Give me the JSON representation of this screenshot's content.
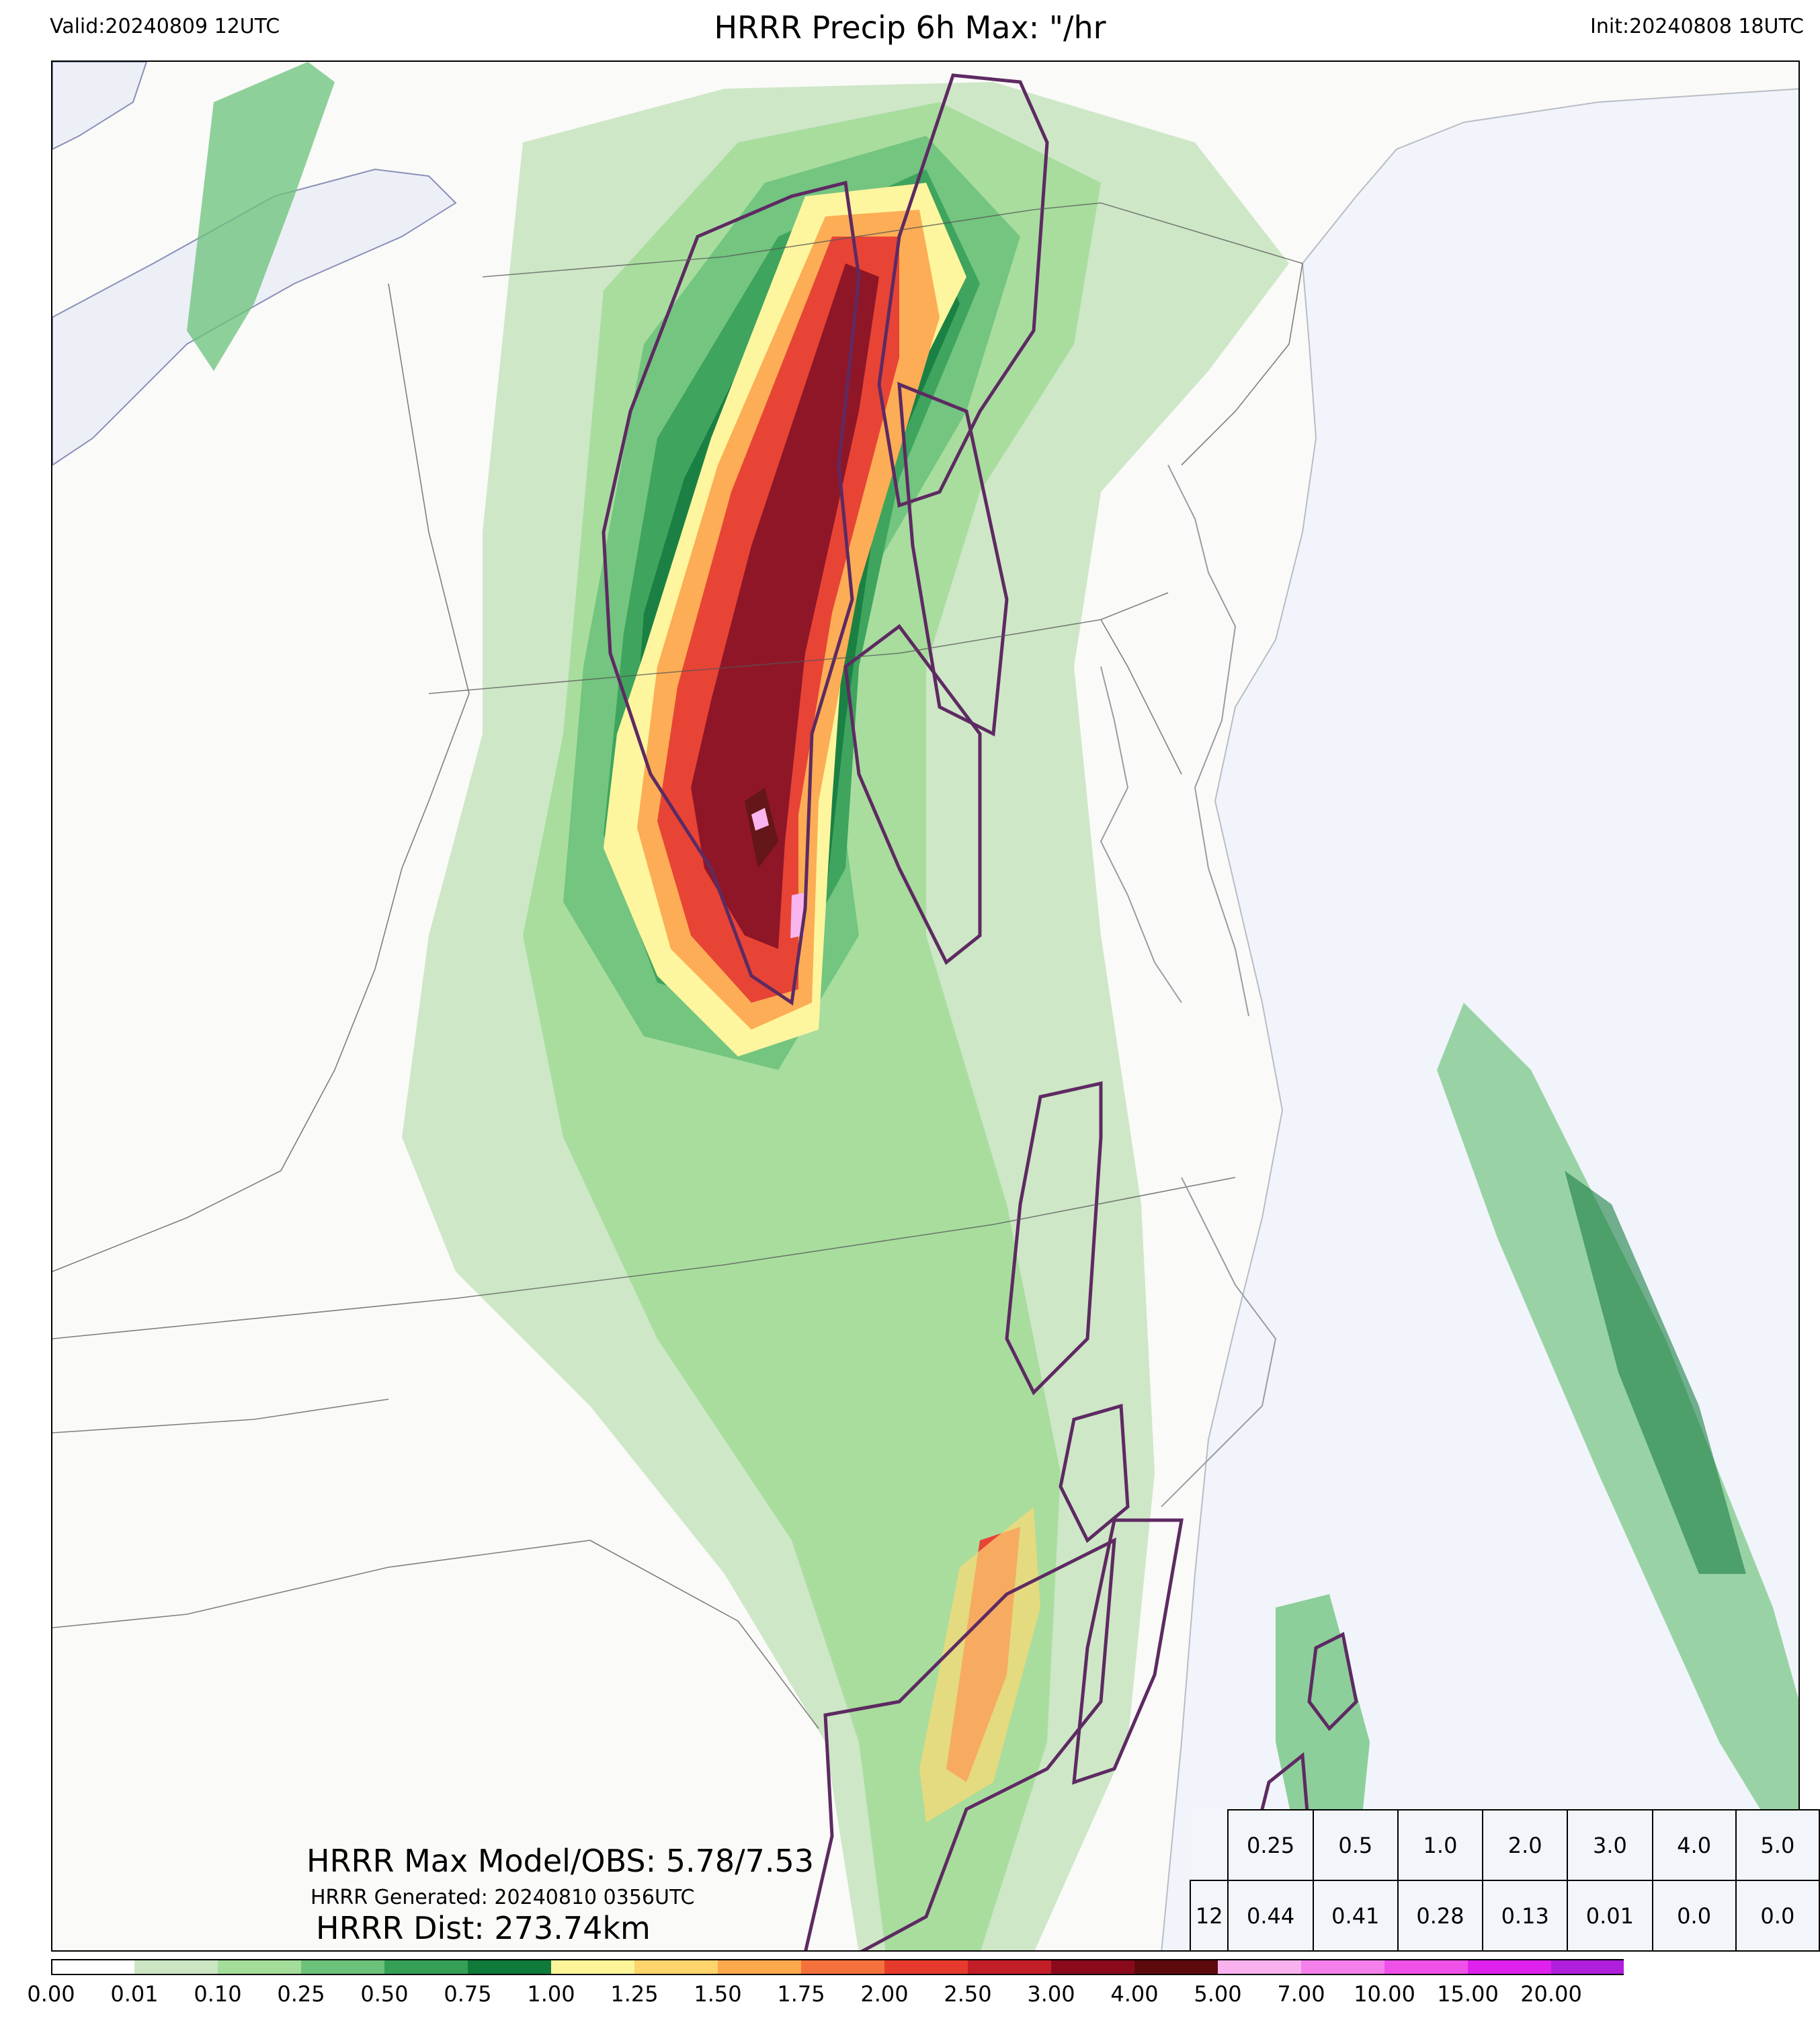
{
  "header": {
    "valid": "Valid:20240809 12UTC",
    "title": "HRRR Precip 6h Max: \"/hr",
    "init": "Init:20240808 18UTC"
  },
  "stats": {
    "max_line": "HRRR Max Model/OBS: 5.78/7.53",
    "generated_line": "HRRR Generated: 20240810 0356UTC",
    "dist_line": "HRRR Dist: 273.74km"
  },
  "threshold_table": {
    "thresholds": [
      "0.25",
      "0.5",
      "1.0",
      "2.0",
      "3.0",
      "4.0",
      "5.0"
    ],
    "row_label": "12",
    "values": [
      "0.44",
      "0.41",
      "0.28",
      "0.13",
      "0.01",
      "0.0",
      "0.0"
    ]
  },
  "colorbar": {
    "ticks": [
      "0.00",
      "0.01",
      "0.10",
      "0.25",
      "0.50",
      "0.75",
      "1.00",
      "1.25",
      "1.50",
      "1.75",
      "2.00",
      "2.50",
      "3.00",
      "4.00",
      "5.00",
      "7.00",
      "10.00",
      "15.00",
      "20.00"
    ],
    "colors": [
      "#ffffff",
      "#cce6c4",
      "#a4dc99",
      "#6cc27a",
      "#35a055",
      "#0f7a3a",
      "#fef59a",
      "#fdd56c",
      "#fca94c",
      "#f5713c",
      "#e63a2c",
      "#c11e28",
      "#8a0a1c",
      "#5c0a0c",
      "#f9b2ee",
      "#f580ec",
      "#ee50e8",
      "#e020ec",
      "#b01fdc"
    ],
    "extend_color": "#7a14c8"
  },
  "colors": {
    "ocean": "#f1f4fa",
    "land": "#fafaf8",
    "obs_contour": "#5e2a62"
  }
}
